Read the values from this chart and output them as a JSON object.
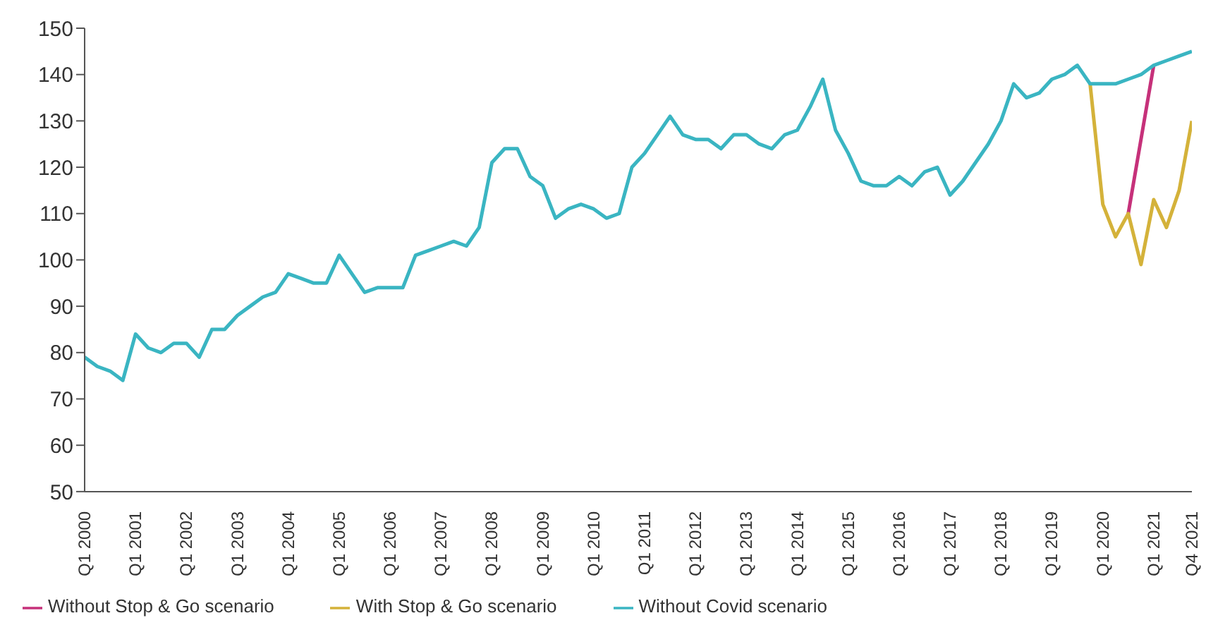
{
  "chart_data": {
    "type": "line",
    "categories": [
      "Q1 2000",
      null,
      null,
      null,
      "Q1 2001",
      null,
      null,
      null,
      "Q1 2002",
      null,
      null,
      null,
      "Q1 2003",
      null,
      null,
      null,
      "Q1 2004",
      null,
      null,
      null,
      "Q1 2005",
      null,
      null,
      null,
      "Q1 2006",
      null,
      null,
      null,
      "Q1 2007",
      null,
      null,
      null,
      "Q1 2008",
      null,
      null,
      null,
      "Q1 2009",
      null,
      null,
      null,
      "Q1 2010",
      null,
      null,
      null,
      "Q1 2011",
      null,
      null,
      null,
      "Q1 2012",
      null,
      null,
      null,
      "Q1 2013",
      null,
      null,
      null,
      "Q1 2014",
      null,
      null,
      null,
      "Q1 2015",
      null,
      null,
      null,
      "Q1 2016",
      null,
      null,
      null,
      "Q1 2017",
      null,
      null,
      null,
      "Q1 2018",
      null,
      null,
      null,
      "Q1 2019",
      null,
      null,
      null,
      "Q1 2020",
      null,
      null,
      null,
      "Q1 2021",
      null,
      null,
      "Q4 2021"
    ],
    "series": [
      {
        "name": "Without Stop & Go scenario",
        "color": "#c6317a",
        "values": [
          null,
          null,
          null,
          null,
          null,
          null,
          null,
          null,
          null,
          null,
          null,
          null,
          null,
          null,
          null,
          null,
          null,
          null,
          null,
          null,
          null,
          null,
          null,
          null,
          null,
          null,
          null,
          null,
          null,
          null,
          null,
          null,
          null,
          null,
          null,
          null,
          null,
          null,
          null,
          null,
          null,
          null,
          null,
          null,
          null,
          null,
          null,
          null,
          null,
          null,
          null,
          null,
          null,
          null,
          null,
          null,
          null,
          null,
          null,
          null,
          null,
          null,
          null,
          null,
          null,
          null,
          null,
          null,
          null,
          null,
          null,
          null,
          null,
          null,
          null,
          null,
          null,
          null,
          null,
          null,
          null,
          null,
          110,
          126,
          142,
          null,
          null,
          null
        ]
      },
      {
        "name": "With Stop & Go scenario",
        "color": "#d4b23a",
        "values": [
          null,
          null,
          null,
          null,
          null,
          null,
          null,
          null,
          null,
          null,
          null,
          null,
          null,
          null,
          null,
          null,
          null,
          null,
          null,
          null,
          null,
          null,
          null,
          null,
          null,
          null,
          null,
          null,
          null,
          null,
          null,
          null,
          null,
          null,
          null,
          null,
          null,
          null,
          null,
          null,
          null,
          null,
          null,
          null,
          null,
          null,
          null,
          null,
          null,
          null,
          null,
          null,
          null,
          null,
          null,
          null,
          null,
          null,
          null,
          null,
          null,
          null,
          null,
          null,
          null,
          null,
          null,
          null,
          null,
          null,
          null,
          null,
          null,
          null,
          null,
          null,
          null,
          null,
          null,
          138,
          112,
          105,
          110,
          99,
          113,
          107,
          115,
          130
        ]
      },
      {
        "name": "Without Covid scenario",
        "color": "#3ab5c2",
        "values": [
          79,
          77,
          76,
          74,
          84,
          81,
          80,
          82,
          82,
          79,
          85,
          85,
          88,
          90,
          92,
          93,
          97,
          96,
          95,
          95,
          101,
          97,
          93,
          94,
          94,
          94,
          101,
          102,
          103,
          104,
          103,
          107,
          121,
          124,
          124,
          118,
          116,
          109,
          111,
          112,
          111,
          109,
          110,
          120,
          123,
          127,
          131,
          127,
          126,
          126,
          124,
          127,
          127,
          125,
          124,
          127,
          128,
          133,
          139,
          128,
          123,
          117,
          116,
          116,
          118,
          116,
          119,
          120,
          114,
          117,
          121,
          125,
          130,
          138,
          135,
          136,
          139,
          140,
          142,
          138,
          138,
          138,
          139,
          140,
          142,
          143,
          144,
          145
        ]
      }
    ],
    "ylim": [
      50,
      150
    ],
    "yticks": [
      50,
      60,
      70,
      80,
      90,
      100,
      110,
      120,
      130,
      140,
      150
    ],
    "grid": false,
    "legend": "bottom left",
    "marker": "none",
    "line_style": "solid"
  }
}
